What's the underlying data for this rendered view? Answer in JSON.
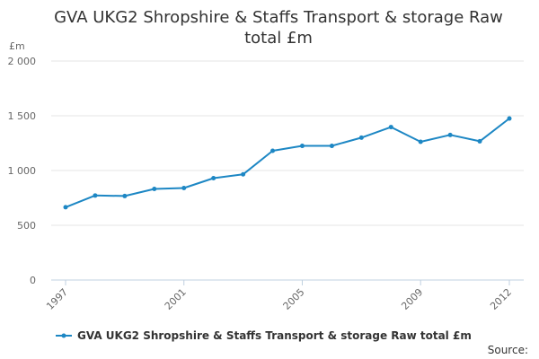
{
  "chart_data": {
    "type": "line",
    "title": "GVA UKG2 Shropshire & Staffs Transport & storage Raw total £m",
    "unit_label": "£m",
    "xlabel": "",
    "ylabel": "",
    "x": [
      1997,
      1998,
      1999,
      2000,
      2001,
      2002,
      2003,
      2004,
      2005,
      2006,
      2007,
      2008,
      2009,
      2010,
      2011,
      2012
    ],
    "x_tick_labels": [
      "1997",
      "2001",
      "2005",
      "2009",
      "2012"
    ],
    "y_tick_labels": [
      "0",
      "500",
      "1 000",
      "1 500",
      "2 000"
    ],
    "y_ticks": [
      0,
      500,
      1000,
      1500,
      2000
    ],
    "ylim": [
      0,
      2000
    ],
    "grid": true,
    "legend_position": "bottom",
    "series": [
      {
        "name": "GVA UKG2 Shropshire & Staffs Transport & storage Raw total £m",
        "color": "#1d87c4",
        "values": [
          665,
          772,
          767,
          832,
          840,
          930,
          965,
          1180,
          1225,
          1225,
          1300,
          1397,
          1262,
          1325,
          1267,
          1475
        ]
      }
    ],
    "source_label": "Source:"
  }
}
